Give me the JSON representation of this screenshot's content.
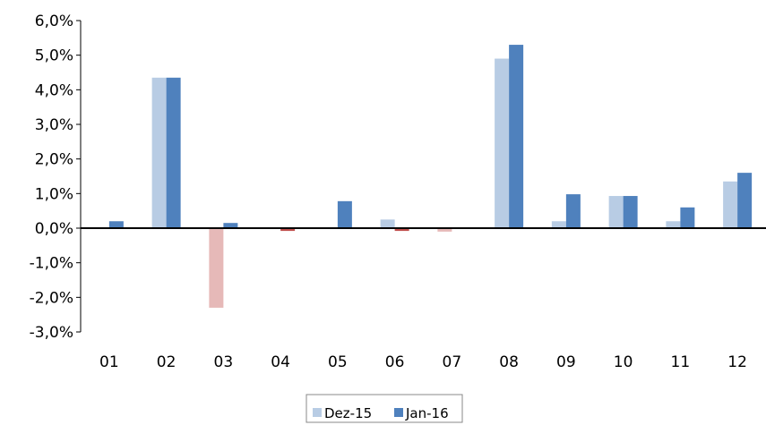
{
  "chart_data": {
    "type": "bar",
    "title": "",
    "xlabel": "",
    "ylabel": "",
    "categories": [
      "01",
      "02",
      "03",
      "04",
      "05",
      "06",
      "07",
      "08",
      "09",
      "10",
      "11",
      "12"
    ],
    "ylim": [
      -3.0,
      6.0
    ],
    "ytick_values": [
      -3.0,
      -2.0,
      -1.0,
      0.0,
      1.0,
      2.0,
      3.0,
      4.0,
      5.0,
      6.0
    ],
    "ytick_labels": [
      "-3,0%",
      "-2,0%",
      "-1,0%",
      "0,0%",
      "1,0%",
      "2,0%",
      "3,0%",
      "4,0%",
      "5,0%",
      "6,0%"
    ],
    "grid": false,
    "legend_position": "bottom",
    "series": [
      {
        "name": "Dez-15",
        "color": "#b8cce4",
        "negative_color": "#e6b9b8",
        "values": [
          0.0,
          4.35,
          -2.3,
          0.0,
          0.0,
          0.25,
          -0.1,
          4.9,
          0.2,
          0.93,
          0.2,
          1.35
        ]
      },
      {
        "name": "Jan-16",
        "color": "#4f81bd",
        "negative_color": "#c0504d",
        "values": [
          0.2,
          4.35,
          0.15,
          -0.08,
          0.78,
          -0.08,
          0.0,
          5.3,
          0.98,
          0.93,
          0.6,
          1.6
        ]
      }
    ]
  }
}
